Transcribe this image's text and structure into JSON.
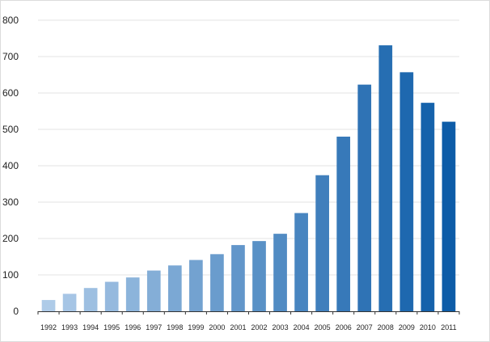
{
  "chart_data": {
    "type": "bar",
    "title": "",
    "xlabel": "",
    "ylabel": "",
    "categories": [
      "1992",
      "1993",
      "1994",
      "1995",
      "1996",
      "1997",
      "1998",
      "1999",
      "2000",
      "2001",
      "2002",
      "2003",
      "2004",
      "2005",
      "2006",
      "2007",
      "2008",
      "2009",
      "2010",
      "2011"
    ],
    "values": [
      31,
      48,
      64,
      81,
      93,
      112,
      126,
      141,
      157,
      182,
      193,
      213,
      270,
      374,
      480,
      623,
      731,
      657,
      573,
      521
    ],
    "ylim": [
      0,
      800
    ],
    "yticks": [
      0,
      100,
      200,
      300,
      400,
      500,
      600,
      700,
      800
    ],
    "grid": true,
    "legend": "none",
    "colors": {
      "bar_start": "#aecbe8",
      "bar_end": "#0d5ca8",
      "grid": "#e3e3e3",
      "axis": "#333333"
    }
  }
}
